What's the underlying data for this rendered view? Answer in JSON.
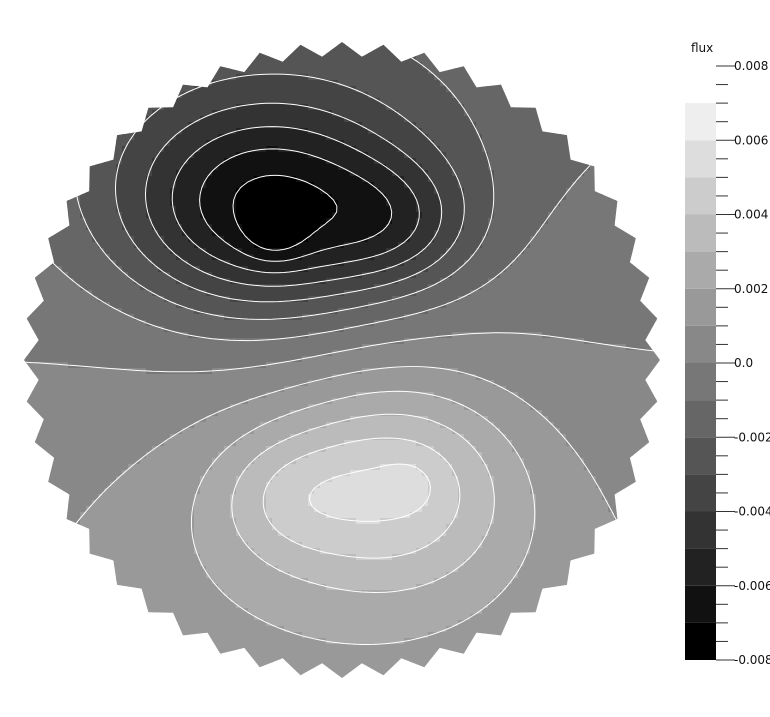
{
  "chart_data": {
    "type": "heatmap",
    "title": "",
    "colorbar": {
      "label": "flux",
      "range": [
        -0.008,
        0.008
      ],
      "tick_labels": [
        "0.008",
        "0.006",
        "0.004",
        "0.002",
        "0.0",
        "-0.002",
        "-0.004",
        "-0.006",
        "-0.008"
      ],
      "tick_values": [
        0.008,
        0.006,
        0.004,
        0.002,
        0.0,
        -0.002,
        -0.004,
        -0.006,
        -0.008
      ],
      "bands": [
        {
          "from": -0.008,
          "to": -0.007,
          "color": "#000000"
        },
        {
          "from": -0.007,
          "to": -0.006,
          "color": "#111111"
        },
        {
          "from": -0.006,
          "to": -0.005,
          "color": "#222222"
        },
        {
          "from": -0.005,
          "to": -0.004,
          "color": "#333333"
        },
        {
          "from": -0.004,
          "to": -0.003,
          "color": "#444444"
        },
        {
          "from": -0.003,
          "to": -0.002,
          "color": "#555555"
        },
        {
          "from": -0.002,
          "to": -0.001,
          "color": "#666666"
        },
        {
          "from": -0.001,
          "to": 0.0,
          "color": "#777777"
        },
        {
          "from": 0.0,
          "to": 0.001,
          "color": "#888888"
        },
        {
          "from": 0.001,
          "to": 0.002,
          "color": "#999999"
        },
        {
          "from": 0.002,
          "to": 0.003,
          "color": "#aaaaaa"
        },
        {
          "from": 0.003,
          "to": 0.004,
          "color": "#bbbbbb"
        },
        {
          "from": 0.004,
          "to": 0.005,
          "color": "#cccccc"
        },
        {
          "from": 0.005,
          "to": 0.006,
          "color": "#dddddd"
        },
        {
          "from": 0.006,
          "to": 0.007,
          "color": "#eeeeee"
        }
      ]
    },
    "field": {
      "shape": "circular sensor array",
      "negative_peaks": [
        -0.0068,
        -0.0061
      ],
      "positive_peaks": [
        0.0047,
        0.0041
      ],
      "contour_line_color": "#ffffff"
    }
  }
}
